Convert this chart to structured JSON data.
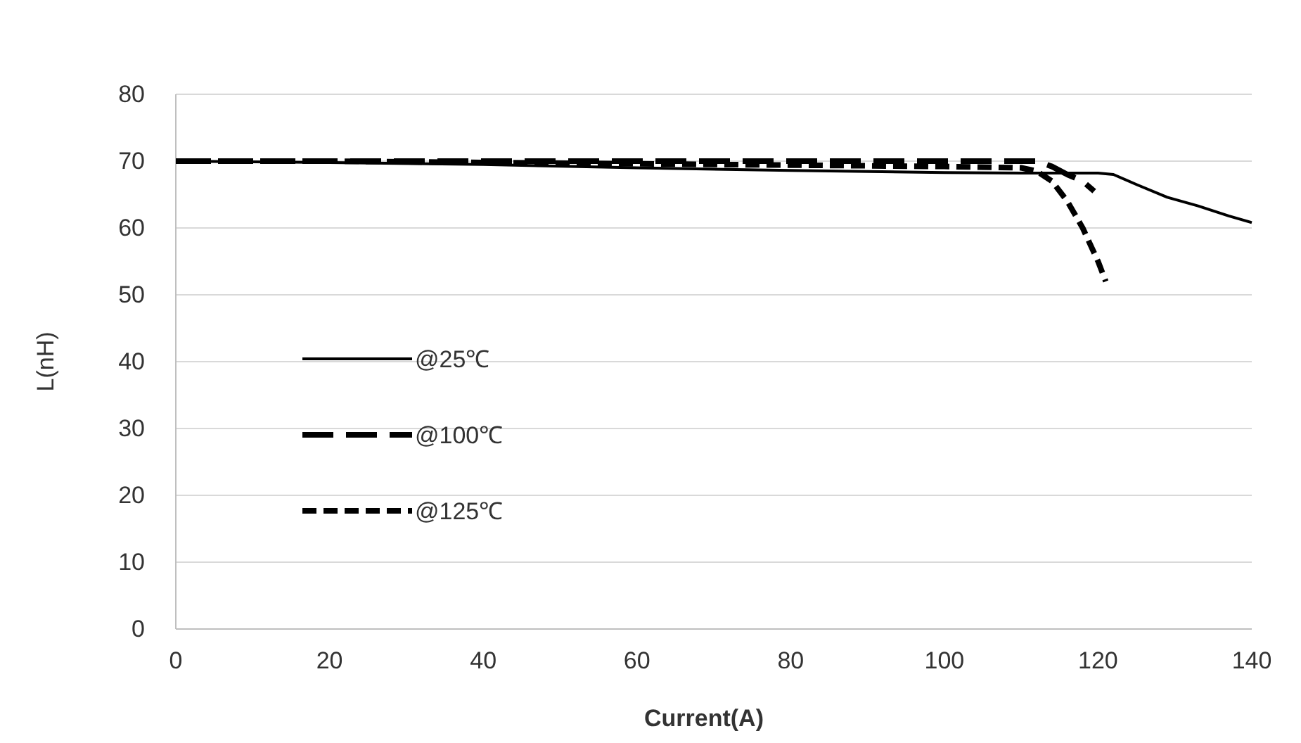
{
  "chart_data": {
    "type": "line",
    "xlabel": "Current(A)",
    "ylabel": "L(nH)",
    "xlim": [
      0,
      140
    ],
    "xticks": [
      0,
      20,
      40,
      60,
      80,
      100,
      120,
      140
    ],
    "ylim": [
      0,
      80
    ],
    "yticks": [
      0,
      10,
      20,
      30,
      40,
      50,
      60,
      70,
      80
    ],
    "grid": "y",
    "legend": "left",
    "marker": "none",
    "series": [
      {
        "name": "@25℃",
        "color": "#000000",
        "line_style": "solid",
        "x": [
          0,
          20,
          40,
          60,
          80,
          100,
          110,
          120,
          122,
          125,
          129,
          133,
          137,
          140
        ],
        "values": [
          70,
          69.8,
          69.5,
          69,
          68.6,
          68.3,
          68.2,
          68.2,
          68,
          66.5,
          64.6,
          63.3,
          61.8,
          60.8
        ]
      },
      {
        "name": "@100℃",
        "color": "#000000",
        "line_style": "dashed",
        "x": [
          0,
          20,
          40,
          60,
          80,
          100,
          112,
          114,
          116,
          118,
          119.5
        ],
        "values": [
          70,
          70,
          70,
          70,
          70,
          70,
          70,
          69.2,
          68,
          67,
          65.5
        ]
      },
      {
        "name": "@125℃",
        "color": "#000000",
        "line_style": "dotted",
        "x": [
          0,
          20,
          40,
          60,
          80,
          100,
          110,
          112,
          114,
          116,
          118,
          120,
          121
        ],
        "values": [
          70,
          70,
          69.8,
          69.6,
          69.4,
          69.2,
          69,
          68.5,
          67,
          64,
          60,
          55,
          52
        ]
      }
    ]
  }
}
